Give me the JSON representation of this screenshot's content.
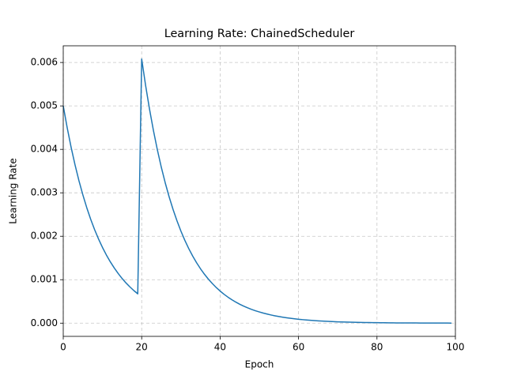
{
  "chart_data": {
    "type": "line",
    "title": "Learning Rate: ChainedScheduler",
    "x_label": "Epoch",
    "y_label": "Learning Rate",
    "x": [
      0,
      1,
      2,
      3,
      4,
      5,
      6,
      7,
      8,
      9,
      10,
      11,
      12,
      13,
      14,
      15,
      16,
      17,
      18,
      19,
      20,
      21,
      22,
      23,
      24,
      25,
      26,
      27,
      28,
      29,
      30,
      31,
      32,
      33,
      34,
      35,
      36,
      37,
      38,
      39,
      40,
      41,
      42,
      43,
      44,
      45,
      46,
      47,
      48,
      49,
      50,
      51,
      52,
      53,
      54,
      55,
      56,
      57,
      58,
      59,
      60,
      61,
      62,
      63,
      64,
      65,
      66,
      67,
      68,
      69,
      70,
      71,
      72,
      73,
      74,
      75,
      76,
      77,
      78,
      79,
      80,
      81,
      82,
      83,
      84,
      85,
      86,
      87,
      88,
      89,
      90,
      91,
      92,
      93,
      94,
      95,
      96,
      97,
      98,
      99
    ],
    "series": [
      {
        "name": "Learning Rate",
        "color": "#1f77b4",
        "values": [
          0.005,
          0.0045,
          0.00405,
          0.003645,
          0.00328,
          0.002952,
          0.002657,
          0.002391,
          0.002152,
          0.001937,
          0.001743,
          0.001569,
          0.001412,
          0.001271,
          0.001144,
          0.001029,
          0.000926,
          0.000834,
          0.00075,
          0.000675,
          0.00608,
          0.005472,
          0.004925,
          0.004432,
          0.003989,
          0.00359,
          0.003231,
          0.002908,
          0.002617,
          0.002356,
          0.00212,
          0.001908,
          0.001717,
          0.001545,
          0.001391,
          0.001252,
          0.001127,
          0.001014,
          0.000913,
          0.000821,
          0.000739,
          0.000665,
          0.000599,
          0.000539,
          0.000485,
          0.000436,
          0.000393,
          0.000354,
          0.000318,
          0.000286,
          0.000258,
          0.000232,
          0.000209,
          0.000188,
          0.000169,
          0.000152,
          0.000137,
          0.000123,
          0.000111,
          0.0001,
          9e-05,
          8.1e-05,
          7.3e-05,
          6.6e-05,
          5.9e-05,
          5.3e-05,
          4.8e-05,
          4.3e-05,
          3.9e-05,
          3.5e-05,
          3.1e-05,
          2.8e-05,
          2.5e-05,
          2.3e-05,
          2.1e-05,
          1.9e-05,
          1.7e-05,
          1.5e-05,
          1.3e-05,
          1.2e-05,
          1.1e-05,
          1e-05,
          9e-06,
          8e-06,
          7e-06,
          6e-06,
          6e-06,
          5e-06,
          5e-06,
          4e-06,
          4e-06,
          3e-06,
          3e-06,
          3e-06,
          3e-06,
          2e-06,
          2e-06,
          2e-06,
          2e-06,
          1e-06
        ]
      }
    ],
    "xlim": [
      0,
      100
    ],
    "xticks": [
      0,
      20,
      40,
      60,
      80,
      100
    ],
    "ylim": [
      -0.000304,
      0.006384
    ],
    "yticks": [
      {
        "value": 0,
        "label": "0.000"
      },
      {
        "value": 0.001,
        "label": "0.001"
      },
      {
        "value": 0.002,
        "label": "0.002"
      },
      {
        "value": 0.003,
        "label": "0.003"
      },
      {
        "value": 0.004,
        "label": "0.004"
      },
      {
        "value": 0.005,
        "label": "0.005"
      },
      {
        "value": 0.006,
        "label": "0.006"
      }
    ],
    "grid": true
  }
}
